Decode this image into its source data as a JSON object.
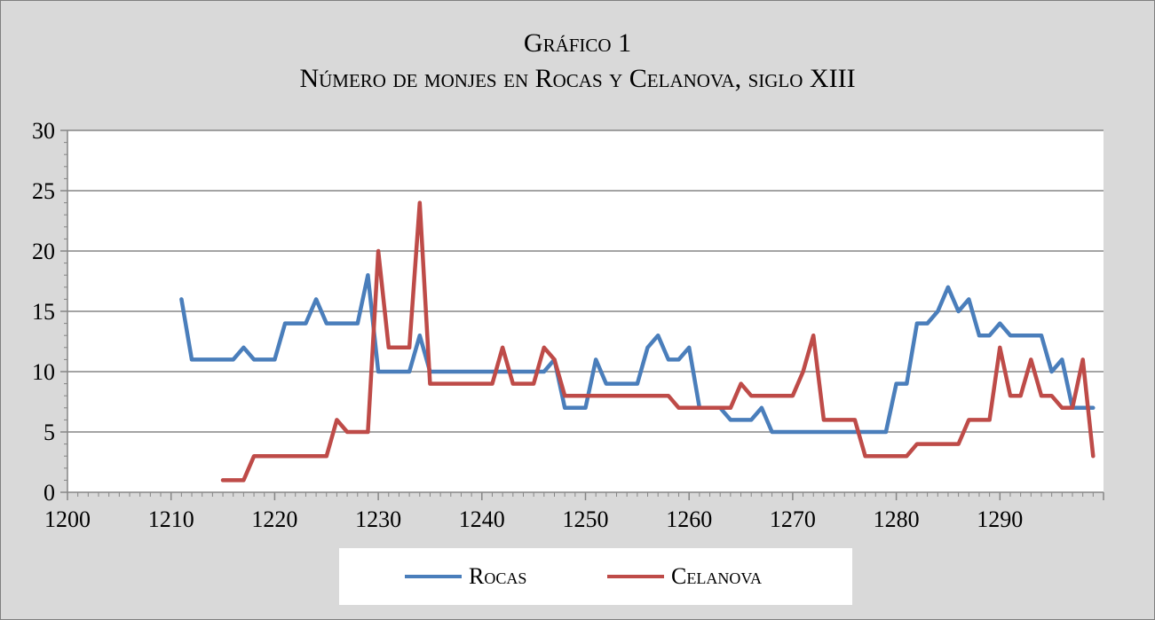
{
  "title": {
    "line1": "Gráfico 1",
    "line2": "Número de monjes en Rocas y Celanova, siglo XIII"
  },
  "chart_data": {
    "type": "line",
    "title": "Gráfico 1 — Número de monjes en Rocas y Celanova, siglo XIII",
    "xlabel": "",
    "ylabel": "",
    "xlim": [
      1200,
      1300
    ],
    "ylim": [
      0,
      30
    ],
    "x_ticks": [
      "1200",
      "1210",
      "1220",
      "1230",
      "1240",
      "1250",
      "1260",
      "1270",
      "1280",
      "1290"
    ],
    "y_ticks": [
      "0",
      "5",
      "10",
      "15",
      "20",
      "25",
      "30"
    ],
    "grid": "horizontal",
    "legend": "bottom",
    "series": [
      {
        "name": "Rocas",
        "color": "#4a7ebb",
        "points": [
          [
            1211,
            16
          ],
          [
            1212,
            11
          ],
          [
            1213,
            11
          ],
          [
            1214,
            11
          ],
          [
            1215,
            11
          ],
          [
            1216,
            11
          ],
          [
            1217,
            12
          ],
          [
            1218,
            11
          ],
          [
            1219,
            11
          ],
          [
            1220,
            11
          ],
          [
            1221,
            14
          ],
          [
            1222,
            14
          ],
          [
            1223,
            14
          ],
          [
            1224,
            16
          ],
          [
            1225,
            14
          ],
          [
            1226,
            14
          ],
          [
            1227,
            14
          ],
          [
            1228,
            14
          ],
          [
            1229,
            18
          ],
          [
            1230,
            10
          ],
          [
            1231,
            10
          ],
          [
            1232,
            10
          ],
          [
            1233,
            10
          ],
          [
            1234,
            13
          ],
          [
            1235,
            10
          ],
          [
            1236,
            10
          ],
          [
            1237,
            10
          ],
          [
            1238,
            10
          ],
          [
            1239,
            10
          ],
          [
            1240,
            10
          ],
          [
            1241,
            10
          ],
          [
            1242,
            10
          ],
          [
            1243,
            10
          ],
          [
            1244,
            10
          ],
          [
            1245,
            10
          ],
          [
            1246,
            10
          ],
          [
            1247,
            11
          ],
          [
            1248,
            7
          ],
          [
            1249,
            7
          ],
          [
            1250,
            7
          ],
          [
            1251,
            11
          ],
          [
            1252,
            9
          ],
          [
            1253,
            9
          ],
          [
            1254,
            9
          ],
          [
            1255,
            9
          ],
          [
            1256,
            12
          ],
          [
            1257,
            13
          ],
          [
            1258,
            11
          ],
          [
            1259,
            11
          ],
          [
            1260,
            12
          ],
          [
            1261,
            7
          ],
          [
            1262,
            7
          ],
          [
            1263,
            7
          ],
          [
            1264,
            6
          ],
          [
            1265,
            6
          ],
          [
            1266,
            6
          ],
          [
            1267,
            7
          ],
          [
            1268,
            5
          ],
          [
            1269,
            5
          ],
          [
            1270,
            5
          ],
          [
            1271,
            5
          ],
          [
            1272,
            5
          ],
          [
            1273,
            5
          ],
          [
            1274,
            5
          ],
          [
            1275,
            5
          ],
          [
            1276,
            5
          ],
          [
            1277,
            5
          ],
          [
            1278,
            5
          ],
          [
            1279,
            5
          ],
          [
            1280,
            9
          ],
          [
            1281,
            9
          ],
          [
            1282,
            14
          ],
          [
            1283,
            14
          ],
          [
            1284,
            15
          ],
          [
            1285,
            17
          ],
          [
            1286,
            15
          ],
          [
            1287,
            16
          ],
          [
            1288,
            13
          ],
          [
            1289,
            13
          ],
          [
            1290,
            14
          ],
          [
            1291,
            13
          ],
          [
            1292,
            13
          ],
          [
            1293,
            13
          ],
          [
            1294,
            13
          ],
          [
            1295,
            10
          ],
          [
            1296,
            11
          ],
          [
            1297,
            7
          ],
          [
            1298,
            7
          ],
          [
            1299,
            7
          ]
        ]
      },
      {
        "name": "Celanova",
        "color": "#be4b48",
        "points": [
          [
            1215,
            1
          ],
          [
            1216,
            1
          ],
          [
            1217,
            1
          ],
          [
            1218,
            3
          ],
          [
            1219,
            3
          ],
          [
            1220,
            3
          ],
          [
            1221,
            3
          ],
          [
            1222,
            3
          ],
          [
            1223,
            3
          ],
          [
            1224,
            3
          ],
          [
            1225,
            3
          ],
          [
            1226,
            6
          ],
          [
            1227,
            5
          ],
          [
            1228,
            5
          ],
          [
            1229,
            5
          ],
          [
            1230,
            20
          ],
          [
            1231,
            12
          ],
          [
            1232,
            12
          ],
          [
            1233,
            12
          ],
          [
            1234,
            24
          ],
          [
            1235,
            9
          ],
          [
            1236,
            9
          ],
          [
            1237,
            9
          ],
          [
            1238,
            9
          ],
          [
            1239,
            9
          ],
          [
            1240,
            9
          ],
          [
            1241,
            9
          ],
          [
            1242,
            12
          ],
          [
            1243,
            9
          ],
          [
            1244,
            9
          ],
          [
            1245,
            9
          ],
          [
            1246,
            12
          ],
          [
            1247,
            11
          ],
          [
            1248,
            8
          ],
          [
            1249,
            8
          ],
          [
            1250,
            8
          ],
          [
            1251,
            8
          ],
          [
            1252,
            8
          ],
          [
            1253,
            8
          ],
          [
            1254,
            8
          ],
          [
            1255,
            8
          ],
          [
            1256,
            8
          ],
          [
            1257,
            8
          ],
          [
            1258,
            8
          ],
          [
            1259,
            7
          ],
          [
            1260,
            7
          ],
          [
            1261,
            7
          ],
          [
            1262,
            7
          ],
          [
            1263,
            7
          ],
          [
            1264,
            7
          ],
          [
            1265,
            9
          ],
          [
            1266,
            8
          ],
          [
            1267,
            8
          ],
          [
            1268,
            8
          ],
          [
            1269,
            8
          ],
          [
            1270,
            8
          ],
          [
            1271,
            10
          ],
          [
            1272,
            13
          ],
          [
            1273,
            6
          ],
          [
            1274,
            6
          ],
          [
            1275,
            6
          ],
          [
            1276,
            6
          ],
          [
            1277,
            3
          ],
          [
            1278,
            3
          ],
          [
            1279,
            3
          ],
          [
            1280,
            3
          ],
          [
            1281,
            3
          ],
          [
            1282,
            4
          ],
          [
            1283,
            4
          ],
          [
            1284,
            4
          ],
          [
            1285,
            4
          ],
          [
            1286,
            4
          ],
          [
            1287,
            6
          ],
          [
            1288,
            6
          ],
          [
            1289,
            6
          ],
          [
            1290,
            12
          ],
          [
            1291,
            8
          ],
          [
            1292,
            8
          ],
          [
            1293,
            11
          ],
          [
            1294,
            8
          ],
          [
            1295,
            8
          ],
          [
            1296,
            7
          ],
          [
            1297,
            7
          ],
          [
            1298,
            11
          ],
          [
            1299,
            3
          ]
        ]
      }
    ]
  }
}
